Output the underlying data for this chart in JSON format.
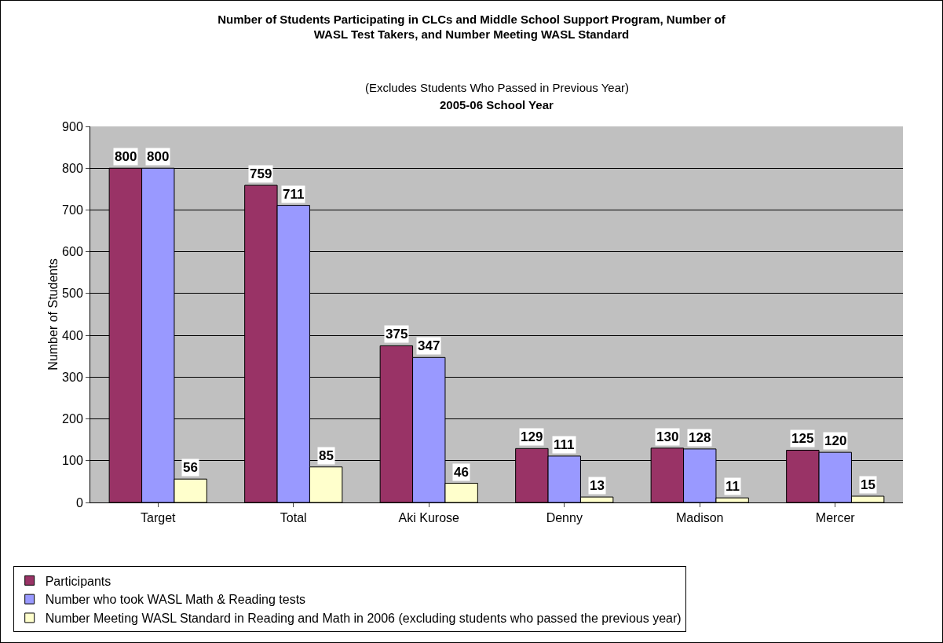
{
  "chart_data": {
    "type": "bar",
    "title": "Number of Students Participating in CLCs and Middle School Support Program, Number of WASL Test Takers, and Number Meeting WASL Standard",
    "subtitle": "(Excludes Students Who Passed in Previous Year)",
    "annotations": [
      "2005-06 School Year"
    ],
    "ylabel": "Number of Students",
    "categories": [
      "Target",
      "Total",
      "Aki Kurose",
      "Denny",
      "Madison",
      "Mercer"
    ],
    "series": [
      {
        "name": "Participants",
        "color": "#993366",
        "values": [
          800,
          759,
          375,
          129,
          130,
          125
        ]
      },
      {
        "name": "Number who took WASL Math & Reading tests",
        "color": "#9999ff",
        "values": [
          800,
          711,
          347,
          111,
          128,
          120
        ]
      },
      {
        "name": "Number Meeting WASL Standard in Reading and Math in 2006 (excluding students who passed the previous year)",
        "color": "#ffffcc",
        "values": [
          56,
          85,
          46,
          13,
          11,
          15
        ]
      }
    ],
    "ylim": [
      0,
      900
    ],
    "yticks": [
      0,
      100,
      200,
      300,
      400,
      500,
      600,
      700,
      800,
      900
    ],
    "grid": "y",
    "legend": "bottom",
    "data_labels": true
  }
}
